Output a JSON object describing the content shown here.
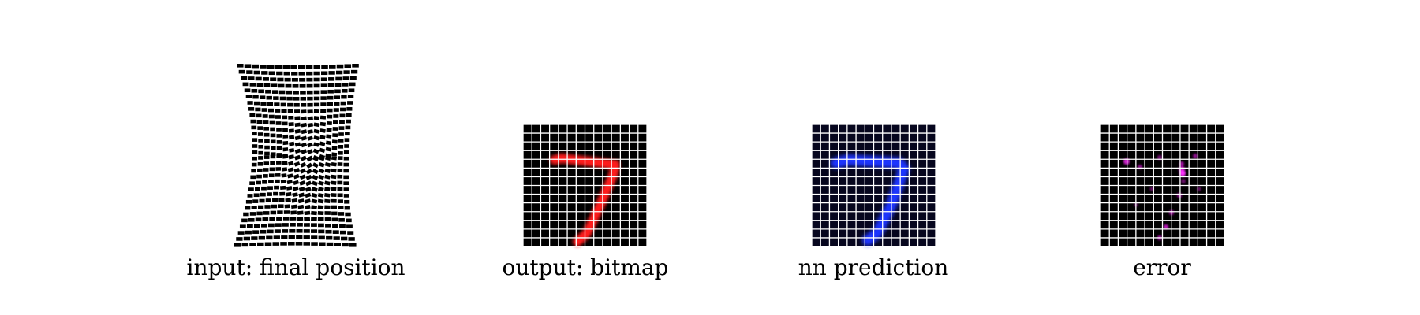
{
  "panels": [
    {
      "caption": "input: final position",
      "kind": "deformed-grid",
      "cell_color": "#000000"
    },
    {
      "caption": "output: bitmap",
      "kind": "bitmap",
      "digit_color": "#ff2020",
      "background": "#000000",
      "grid_lines": "#ffffff",
      "grid_cells": 14
    },
    {
      "caption": "nn prediction",
      "kind": "bitmap",
      "digit_color": "#2030ff",
      "background": "#050520",
      "grid_lines": "#ffffff",
      "grid_cells": 14
    },
    {
      "caption": "error",
      "kind": "bitmap",
      "digit_color": "#e020e0",
      "background": "#000000",
      "grid_lines": "#ffffff",
      "grid_cells": 14
    }
  ]
}
